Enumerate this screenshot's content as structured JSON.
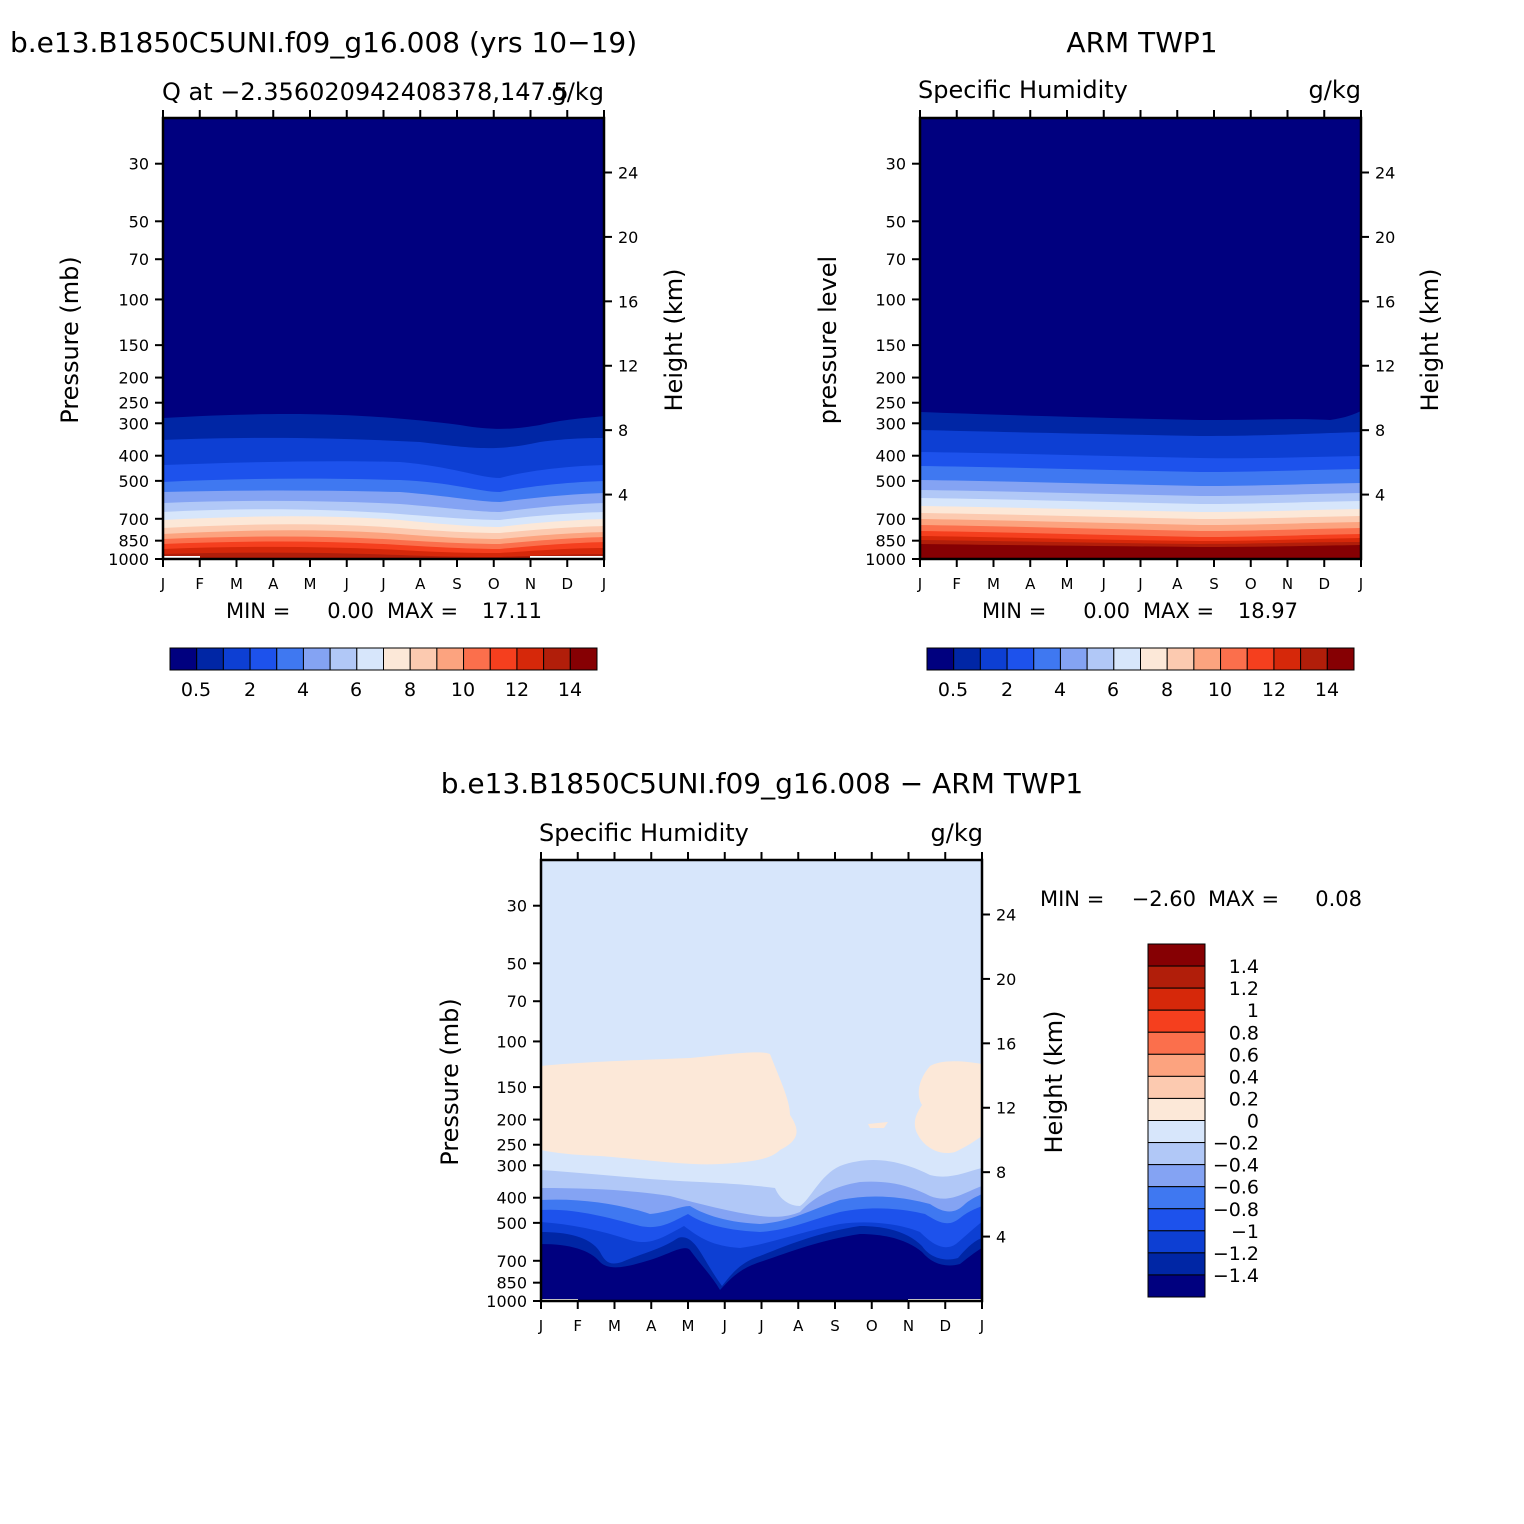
{
  "colors": {
    "seq": [
      "#00007f",
      "#0026a5",
      "#0d3fd3",
      "#1d52ec",
      "#3f78f1",
      "#84a3f3",
      "#b1c8f7",
      "#d7e6fb",
      "#fce8d8",
      "#fccab0",
      "#fca37f",
      "#fb6f4c",
      "#f53f1e",
      "#d6280a",
      "#b11e0a",
      "#860003"
    ],
    "diff": [
      "#00007f",
      "#0026a5",
      "#0d3fd3",
      "#1d52ec",
      "#3f78f1",
      "#84a3f3",
      "#b1c8f7",
      "#d7e6fb",
      "#fce8d8",
      "#fccab0",
      "#fca37f",
      "#fb6f4c",
      "#f53f1e",
      "#d6280a",
      "#b11e0a",
      "#860003"
    ]
  },
  "chart_data": [
    {
      "type": "heatmap",
      "title": "b.e13.B1850C5UNI.f09_g16.008 (yrs 10−19)",
      "subtitle_left": "Q at −2.356020942408378,147.5",
      "subtitle_right": "g/kg",
      "xlabel": "",
      "ylabel": "Pressure (mb)",
      "ylabel_right": "Height (km)",
      "months": [
        "J",
        "F",
        "M",
        "A",
        "M",
        "J",
        "J",
        "A",
        "S",
        "O",
        "N",
        "D",
        "J"
      ],
      "pressure_ticks": [
        "30",
        "50",
        "70",
        "100",
        "150",
        "200",
        "250",
        "300",
        "400",
        "500",
        "700",
        "850",
        "1000"
      ],
      "height_ticks": [
        "24",
        "20",
        "16",
        "12",
        "8",
        "4"
      ],
      "ylim_mb": [
        1000,
        20
      ],
      "contour_upper_mb": [
        300,
        300,
        300,
        300,
        300,
        305,
        310,
        315,
        325,
        335,
        320,
        305,
        300
      ],
      "contour_lower_mb": [
        960,
        958,
        952,
        950,
        955,
        950,
        955,
        965,
        968,
        968,
        962,
        958,
        960
      ],
      "min_label": "MIN =",
      "min_value": "0.00",
      "max_label": "MAX =",
      "max_value": "17.11",
      "colorbar_labels": [
        "0.5",
        "2",
        "4",
        "6",
        "8",
        "10",
        "12",
        "14"
      ]
    },
    {
      "type": "heatmap",
      "title": "ARM TWP1",
      "subtitle_left": "Specific Humidity",
      "subtitle_right": "g/kg",
      "xlabel": "",
      "ylabel": "pressure level",
      "ylabel_right": "Height (km)",
      "months": [
        "J",
        "F",
        "M",
        "A",
        "M",
        "J",
        "J",
        "A",
        "S",
        "O",
        "N",
        "D",
        "J"
      ],
      "pressure_ticks": [
        "30",
        "50",
        "70",
        "100",
        "150",
        "200",
        "250",
        "300",
        "400",
        "500",
        "700",
        "850",
        "1000"
      ],
      "height_ticks": [
        "24",
        "20",
        "16",
        "12",
        "8",
        "4"
      ],
      "ylim_mb": [
        1000,
        20
      ],
      "contour_upper_mb": [
        290,
        292,
        293,
        294,
        296,
        298,
        300,
        300,
        300,
        298,
        296,
        302,
        290
      ],
      "contour_lower_mb": [
        900,
        902,
        905,
        903,
        905,
        906,
        906,
        905,
        905,
        905,
        903,
        905,
        900
      ],
      "min_label": "MIN =",
      "min_value": "0.00",
      "max_label": "MAX =",
      "max_value": "18.97",
      "colorbar_labels": [
        "0.5",
        "2",
        "4",
        "6",
        "8",
        "10",
        "12",
        "14"
      ]
    },
    {
      "type": "heatmap",
      "title": "b.e13.B1850C5UNI.f09_g16.008 − ARM TWP1",
      "subtitle_left": "Specific Humidity",
      "subtitle_right": "g/kg",
      "xlabel": "",
      "ylabel": "Pressure (mb)",
      "ylabel_right": "Height (km)",
      "months": [
        "J",
        "F",
        "M",
        "A",
        "M",
        "J",
        "J",
        "A",
        "S",
        "O",
        "N",
        "D",
        "J"
      ],
      "pressure_ticks": [
        "30",
        "50",
        "70",
        "100",
        "150",
        "200",
        "250",
        "300",
        "400",
        "500",
        "700",
        "850",
        "1000"
      ],
      "height_ticks": [
        "24",
        "20",
        "16",
        "12",
        "8",
        "4"
      ],
      "ylim_mb": [
        1000,
        20
      ],
      "positive_region_top_mb": [
        145,
        140,
        140,
        140,
        135,
        130,
        125,
        200,
        null,
        null,
        null,
        130,
        140
      ],
      "positive_region_bottom_mb": [
        270,
        280,
        300,
        310,
        320,
        320,
        310,
        250,
        null,
        null,
        null,
        290,
        270
      ],
      "min_label": "MIN =",
      "min_value": "−2.60",
      "max_label": "MAX =",
      "max_value": "0.08",
      "colorbar_labels": [
        "1.4",
        "1.2",
        "1",
        "0.8",
        "0.6",
        "0.4",
        "0.2",
        "0",
        "−0.2",
        "−0.4",
        "−0.6",
        "−0.8",
        "−1",
        "−1.2",
        "−1.4"
      ]
    }
  ]
}
